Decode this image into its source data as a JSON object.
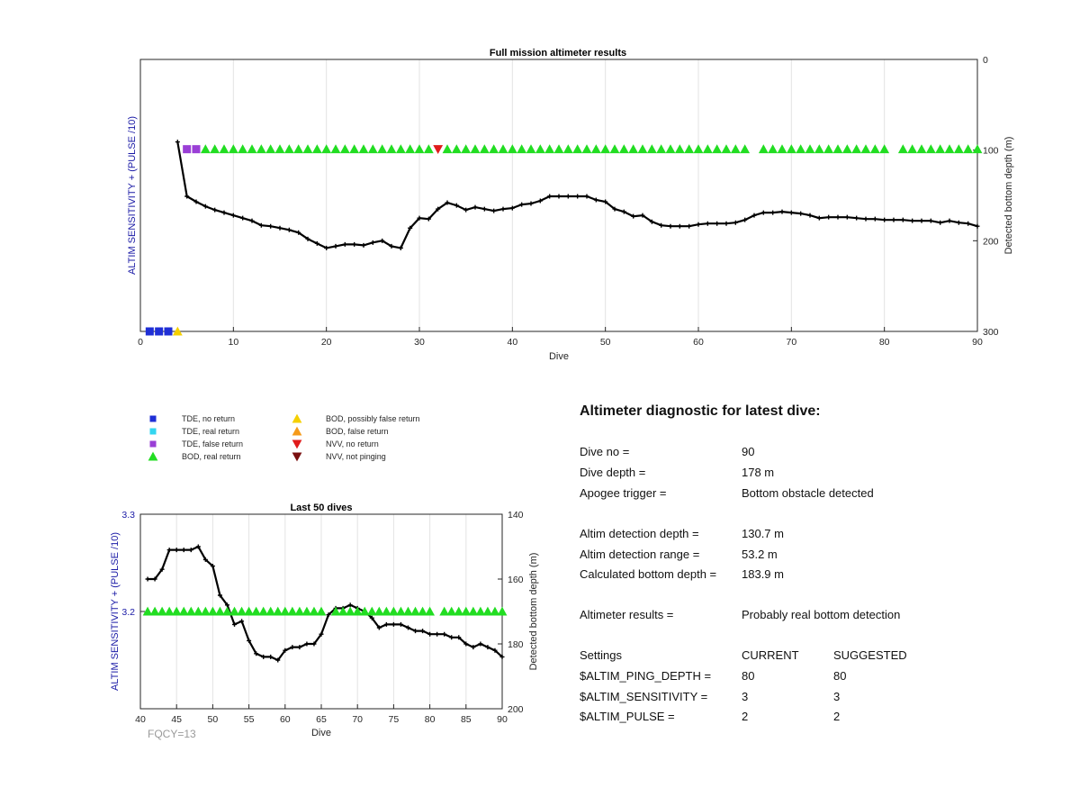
{
  "top_chart": {
    "title": "Full mission altimeter results",
    "xlabel": "Dive",
    "ylabel_left": "ALTIM SENSITIVITY + (PULSE /10)",
    "ylabel_right": "Detected bottom depth (m)"
  },
  "bottom_chart": {
    "title": "Last 50 dives",
    "xlabel": "Dive",
    "ylabel_left": "ALTIM SENSITIVITY + (PULSE /10)",
    "ylabel_right": "Detected bottom depth (m)"
  },
  "legend": {
    "items": [
      {
        "label": "TDE, no return",
        "color": "#1f2fd6",
        "shape": "square"
      },
      {
        "label": "TDE, real return",
        "color": "#33d6f0",
        "shape": "square"
      },
      {
        "label": "TDE, false return",
        "color": "#9a3fd6",
        "shape": "square"
      },
      {
        "label": "BOD, real return",
        "color": "#22dd22",
        "shape": "triangle-up"
      },
      {
        "label": "BOD, possibly false return",
        "color": "#f5d000",
        "shape": "triangle-up"
      },
      {
        "label": "BOD, false return",
        "color": "#f59a1a",
        "shape": "triangle-up"
      },
      {
        "label": "NVV, no return",
        "color": "#e01b1b",
        "shape": "triangle-down"
      },
      {
        "label": "NVV, not pinging",
        "color": "#7a1010",
        "shape": "triangle-down"
      }
    ]
  },
  "fqcy": "FQCY=13",
  "diagnostic": {
    "title": "Altimeter diagnostic for latest dive:",
    "rows": [
      {
        "label": "Dive no =",
        "current": "90",
        "suggested": ""
      },
      {
        "label": "Dive depth =",
        "current": "178 m",
        "suggested": ""
      },
      {
        "label": "Apogee trigger =",
        "current": "Bottom obstacle detected",
        "suggested": ""
      },
      {
        "label": "Altim detection depth =",
        "current": "130.7 m",
        "suggested": ""
      },
      {
        "label": "Altim detection range =",
        "current": "53.2 m",
        "suggested": ""
      },
      {
        "label": "Calculated bottom depth =",
        "current": "183.9 m",
        "suggested": ""
      },
      {
        "label": "Altimeter results =",
        "current": "Probably real bottom detection",
        "suggested": ""
      },
      {
        "label": "Settings",
        "current": "CURRENT",
        "suggested": "SUGGESTED"
      },
      {
        "label": "$ALTIM_PING_DEPTH =",
        "current": "80",
        "suggested": "80"
      },
      {
        "label": "$ALTIM_SENSITIVITY =",
        "current": "3",
        "suggested": "3"
      },
      {
        "label": "$ALTIM_PULSE =",
        "current": "2",
        "suggested": "2"
      }
    ]
  },
  "chart_data": [
    {
      "type": "line",
      "title": "Full mission altimeter results",
      "xlabel": "Dive",
      "ylabel": "ALTIM SENSITIVITY + (PULSE /10)",
      "y2label": "Detected bottom depth (m)",
      "xlim": [
        0,
        90
      ],
      "x_ticks": [
        0,
        10,
        20,
        30,
        40,
        50,
        60,
        70,
        80,
        90
      ],
      "y2lim": [
        0,
        300
      ],
      "y2_reversed": true,
      "y2_ticks": [
        0,
        100,
        200,
        300
      ],
      "grid": "vertical",
      "series": [
        {
          "name": "Detected bottom depth",
          "color": "#000000",
          "x": [
            4,
            5,
            6,
            7,
            8,
            9,
            10,
            11,
            12,
            13,
            14,
            15,
            16,
            17,
            18,
            19,
            20,
            21,
            22,
            23,
            24,
            25,
            26,
            27,
            28,
            29,
            30,
            31,
            32,
            33,
            34,
            35,
            36,
            37,
            38,
            39,
            40,
            41,
            42,
            43,
            44,
            45,
            46,
            47,
            48,
            49,
            50,
            51,
            52,
            53,
            54,
            55,
            56,
            57,
            58,
            59,
            60,
            61,
            62,
            63,
            64,
            65,
            66,
            67,
            68,
            69,
            70,
            71,
            72,
            73,
            74,
            75,
            76,
            77,
            78,
            79,
            80,
            81,
            82,
            83,
            84,
            85,
            86,
            87,
            88,
            89,
            90
          ],
          "y": [
            91,
            151,
            157,
            162,
            166,
            169,
            172,
            175,
            178,
            183,
            184,
            186,
            188,
            191,
            198,
            203,
            208,
            206,
            204,
            204,
            205,
            202,
            200,
            206,
            208,
            186,
            175,
            176,
            165,
            158,
            161,
            166,
            163,
            165,
            167,
            165,
            164,
            160,
            159,
            156,
            151,
            151,
            151,
            151,
            151,
            155,
            157,
            165,
            168,
            173,
            172,
            179,
            183,
            184,
            184,
            184,
            182,
            181,
            181,
            181,
            180,
            177,
            172,
            169,
            169,
            168,
            169,
            170,
            172,
            175,
            174,
            174,
            174,
            175,
            176,
            176,
            177,
            177,
            177,
            178,
            178,
            178,
            180,
            178,
            180,
            181,
            184
          ]
        }
      ],
      "markers": [
        {
          "x": 1,
          "y2": 300,
          "legend": "TDE, no return"
        },
        {
          "x": 2,
          "y2": 300,
          "legend": "TDE, no return"
        },
        {
          "x": 3,
          "y2": 300,
          "legend": "TDE, no return"
        },
        {
          "x": 4,
          "y2": 300,
          "legend": "BOD, possibly false return"
        },
        {
          "x": 5,
          "y2": 99,
          "legend": "TDE, false return"
        },
        {
          "x": 6,
          "y2": 99,
          "legend": "TDE, false return"
        },
        {
          "x_from": 7,
          "x_to": 31,
          "y2": 99,
          "legend": "BOD, real return"
        },
        {
          "x": 32,
          "y2": 99,
          "legend": "NVV, no return"
        },
        {
          "x_from": 33,
          "x_to": 65,
          "y2": 99,
          "legend": "BOD, real return"
        },
        {
          "x_from": 67,
          "x_to": 80,
          "y2": 99,
          "legend": "BOD, real return"
        },
        {
          "x_from": 82,
          "x_to": 90,
          "y2": 99,
          "legend": "BOD, real return"
        }
      ]
    },
    {
      "type": "line",
      "title": "Last 50 dives",
      "xlabel": "Dive",
      "ylabel": "ALTIM SENSITIVITY + (PULSE /10)",
      "y2label": "Detected bottom depth (m)",
      "xlim": [
        40,
        90
      ],
      "x_ticks": [
        40,
        45,
        50,
        55,
        60,
        65,
        70,
        75,
        80,
        85,
        90
      ],
      "ylim": [
        3.1,
        3.3
      ],
      "y_ticks": [
        3.2,
        3.3
      ],
      "y2lim": [
        140,
        200
      ],
      "y2_reversed": true,
      "y2_ticks": [
        140,
        160,
        180,
        200
      ],
      "grid": "vertical",
      "series": [
        {
          "name": "Detected bottom depth",
          "color": "#000000",
          "x": [
            41,
            42,
            43,
            44,
            45,
            46,
            47,
            48,
            49,
            50,
            51,
            52,
            53,
            54,
            55,
            56,
            57,
            58,
            59,
            60,
            61,
            62,
            63,
            64,
            65,
            66,
            67,
            68,
            69,
            70,
            71,
            72,
            73,
            74,
            75,
            76,
            77,
            78,
            79,
            80,
            81,
            82,
            83,
            84,
            85,
            86,
            87,
            88,
            89,
            90
          ],
          "y": [
            160,
            160,
            157,
            151,
            151,
            151,
            151,
            150,
            154,
            156,
            165,
            168,
            174,
            173,
            179,
            183,
            184,
            184,
            185,
            182,
            181,
            181,
            180,
            180,
            177,
            171,
            169,
            169,
            168,
            169,
            170,
            172,
            175,
            174,
            174,
            174,
            175,
            176,
            176,
            177,
            177,
            177,
            178,
            178,
            180,
            181,
            180,
            181,
            182,
            184
          ]
        }
      ],
      "markers": [
        {
          "x_from": 41,
          "x_to": 65,
          "y": 3.2,
          "legend": "BOD, real return"
        },
        {
          "x_from": 67,
          "x_to": 80,
          "y": 3.2,
          "legend": "BOD, real return"
        },
        {
          "x_from": 82,
          "x_to": 90,
          "y": 3.2,
          "legend": "BOD, real return"
        }
      ]
    }
  ]
}
